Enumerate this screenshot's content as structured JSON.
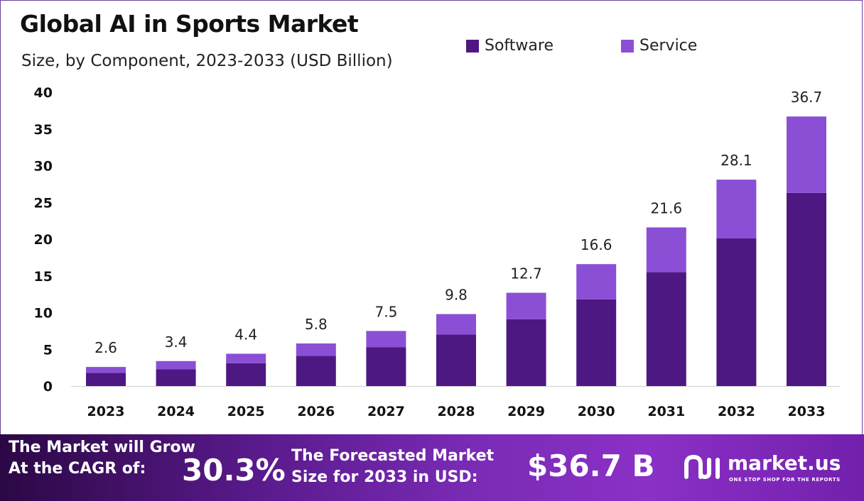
{
  "title": "Global AI in Sports Market",
  "subtitle": "Size, by Component, 2023-2033 (USD Billion)",
  "colors": {
    "software": "#4e1883",
    "service": "#8b4fd6"
  },
  "chart_data": {
    "type": "bar",
    "stacked": true,
    "categories": [
      "2023",
      "2024",
      "2025",
      "2026",
      "2027",
      "2028",
      "2029",
      "2030",
      "2031",
      "2032",
      "2033"
    ],
    "series": [
      {
        "name": "Software",
        "values": [
          1.8,
          2.3,
          3.1,
          4.1,
          5.3,
          7.0,
          9.1,
          11.8,
          15.5,
          20.1,
          26.3
        ]
      },
      {
        "name": "Service",
        "values": [
          0.8,
          1.1,
          1.3,
          1.7,
          2.2,
          2.8,
          3.6,
          4.8,
          6.1,
          8.0,
          10.4
        ]
      }
    ],
    "totals": [
      "2.6",
      "3.4",
      "4.4",
      "5.8",
      "7.5",
      "9.8",
      "12.7",
      "16.6",
      "21.6",
      "28.1",
      "36.7"
    ],
    "yticks": [
      "0",
      "5",
      "10",
      "15",
      "20",
      "25",
      "30",
      "35",
      "40"
    ],
    "ylim": [
      0,
      40
    ],
    "grid": false,
    "legend": "top"
  },
  "footer": {
    "cagr_label_1": "The Market will Grow",
    "cagr_label_2": "At the CAGR of:",
    "cagr_value": "30.3%",
    "forecast_label_1": "The Forecasted Market",
    "forecast_label_2": "Size for 2033 in USD:",
    "forecast_value": "$36.7 B",
    "brand_name": "market.us",
    "brand_tagline": "ONE STOP SHOP FOR THE REPORTS"
  }
}
